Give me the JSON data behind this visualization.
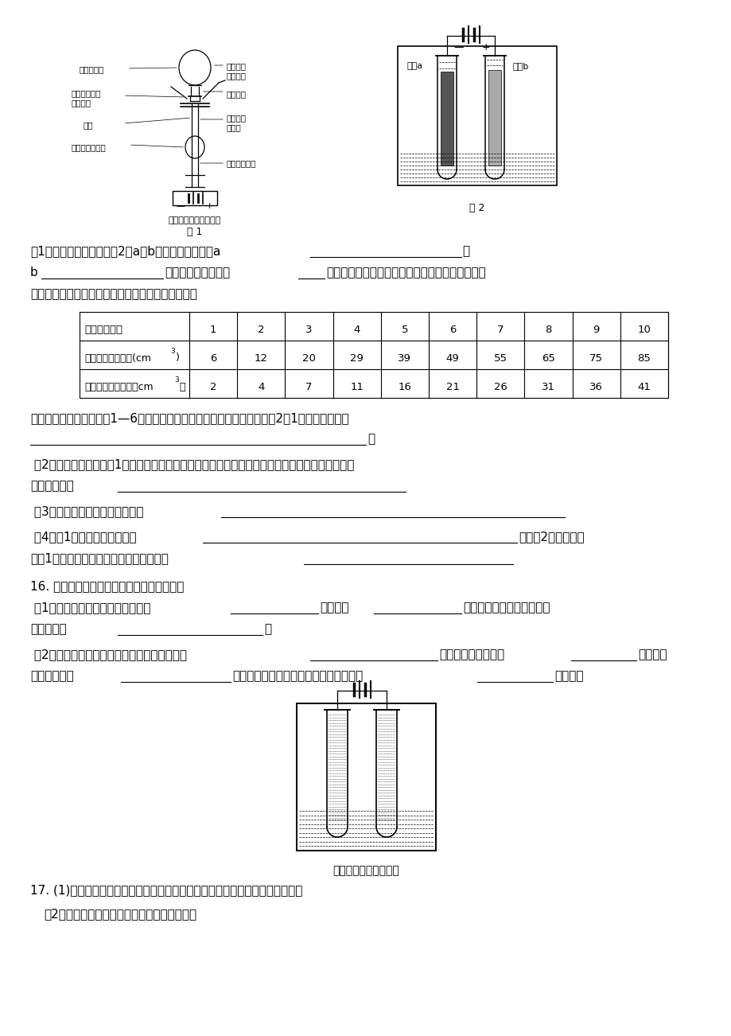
{
  "bg_color": "#ffffff",
  "text_color": "#000000",
  "table_header": [
    "时间（分钟）",
    "1",
    "2",
    "3",
    "4",
    "5",
    "6",
    "7",
    "8",
    "9",
    "10"
  ],
  "table_row1_data": [
    "6",
    "12",
    "20",
    "29",
    "39",
    "49",
    "55",
    "65",
    "75",
    "85"
  ],
  "table_row2_data": [
    "2",
    "4",
    "7",
    "11",
    "16",
    "21",
    "26",
    "31",
    "36",
    "41"
  ],
  "font_zh": "Arial Unicode MS",
  "fontsize_body": 11,
  "fontsize_small": 9,
  "fontsize_caption": 9.5
}
